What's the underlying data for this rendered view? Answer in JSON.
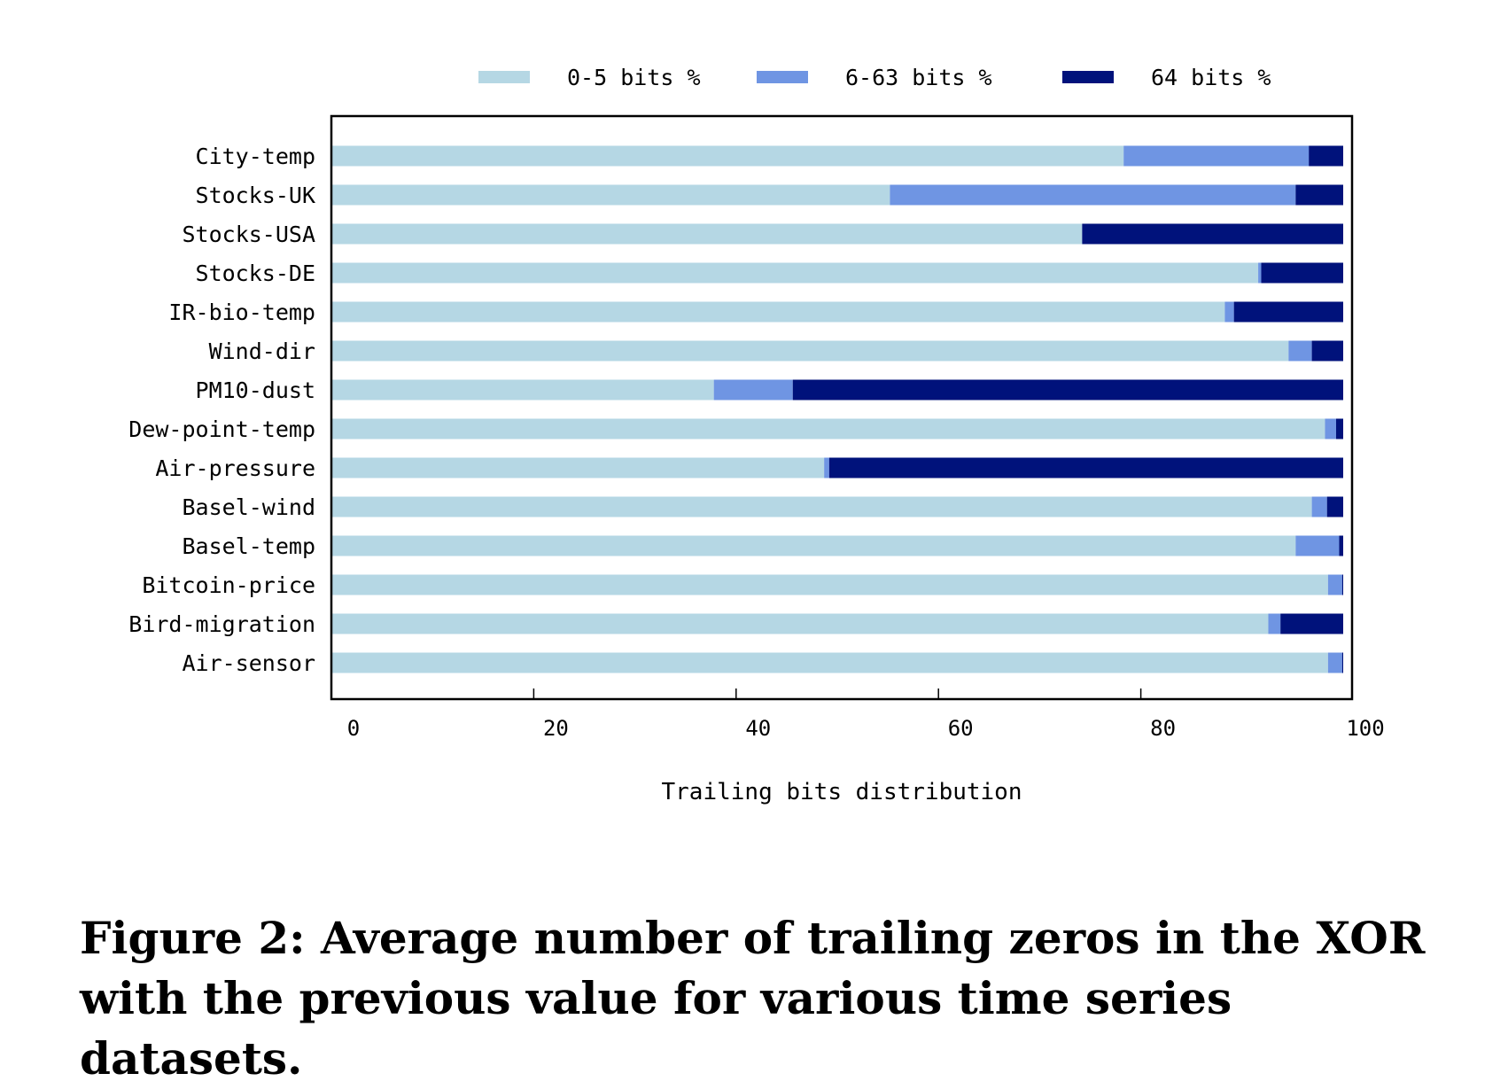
{
  "chart_data": {
    "type": "bar",
    "orientation": "horizontal",
    "stacked": true,
    "categories": [
      "City-temp",
      "Stocks-UK",
      "Stocks-USA",
      "Stocks-DE",
      "IR-bio-temp",
      "Wind-dir",
      "PM10-dust",
      "Dew-point-temp",
      "Air-pressure",
      "Basel-wind",
      "Basel-temp",
      "Bitcoin-price",
      "Bird-migration",
      "Air-sensor"
    ],
    "series": [
      {
        "name": "0-5 bits %",
        "color": "#b5d7e4",
        "values": [
          78.3,
          55.2,
          74.2,
          91.6,
          88.3,
          94.6,
          37.8,
          98.2,
          48.7,
          96.9,
          95.3,
          98.5,
          92.6,
          98.5
        ]
      },
      {
        "name": "6-63 bits %",
        "color": "#6f95e3",
        "values": [
          18.3,
          40.1,
          0.0,
          0.3,
          0.9,
          2.3,
          7.8,
          1.1,
          0.5,
          1.5,
          4.3,
          1.4,
          1.2,
          1.4
        ]
      },
      {
        "name": "64 bits %",
        "color": "#00127b",
        "values": [
          3.4,
          4.7,
          25.8,
          8.1,
          10.8,
          3.1,
          54.4,
          0.7,
          50.8,
          1.6,
          0.4,
          0.1,
          6.2,
          0.1
        ]
      }
    ],
    "xlim": [
      0,
      100
    ],
    "x_ticks": [
      "0",
      "20",
      "40",
      "60",
      "80",
      "100"
    ],
    "xlabel": "Trailing bits distribution",
    "ylabel": "",
    "legend_position": "top",
    "grid": false
  },
  "caption": "Figure 2: Average number of trailing zeros in the XOR with the previous value for various time series datasets."
}
